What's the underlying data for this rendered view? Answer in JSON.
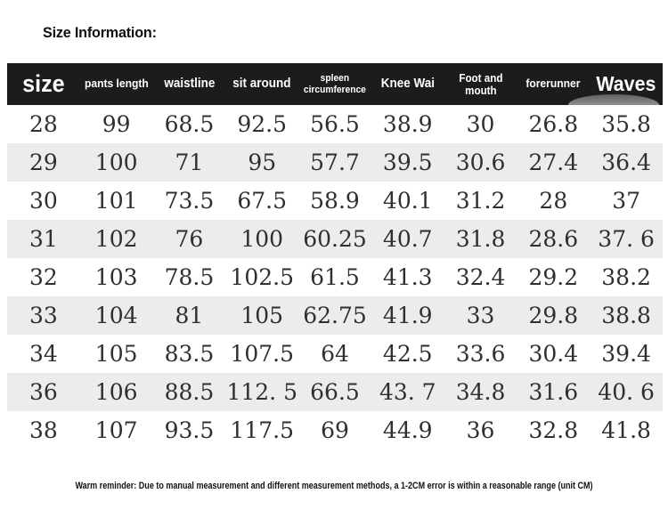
{
  "page": {
    "title": "Size Information:"
  },
  "table": {
    "columns": [
      {
        "label": "size",
        "emphasis": "xl"
      },
      {
        "label": "pants length",
        "emphasis": "sm"
      },
      {
        "label": "waistline",
        "emphasis": "md"
      },
      {
        "label": "sit around",
        "emphasis": "md"
      },
      {
        "label": "spleen\ncircumference",
        "emphasis": "xs"
      },
      {
        "label": "Knee Wai",
        "emphasis": "md"
      },
      {
        "label": "Foot and\nmouth",
        "emphasis": "xs2"
      },
      {
        "label": "forerunner",
        "emphasis": "sm"
      },
      {
        "label": "Waves",
        "emphasis": "lg"
      }
    ],
    "rows": [
      [
        "28",
        "99",
        "68.5",
        "92.5",
        "56.5",
        "38.9",
        "30",
        "26.8",
        "35.8"
      ],
      [
        "29",
        "100",
        "71",
        "95",
        "57.7",
        "39.5",
        "30.6",
        "27.4",
        "36.4"
      ],
      [
        "30",
        "101",
        "73.5",
        "67.5",
        "58.9",
        "40.1",
        "31.2",
        "28",
        "37"
      ],
      [
        "31",
        "102",
        "76",
        "100",
        "60.25",
        "40.7",
        "31.8",
        "28.6",
        "37. 6"
      ],
      [
        "32",
        "103",
        "78.5",
        "102.5",
        "61.5",
        "41.3",
        "32.4",
        "29.2",
        "38.2"
      ],
      [
        "33",
        "104",
        "81",
        "105",
        "62.75",
        "41.9",
        "33",
        "29.8",
        "38.8"
      ],
      [
        "34",
        "105",
        "83.5",
        "107.5",
        "64",
        "42.5",
        "33.6",
        "30.4",
        "39.4"
      ],
      [
        "36",
        "106",
        "88.5",
        "112. 5",
        "66.5",
        "43. 7",
        "34.8",
        "31.6",
        "40. 6"
      ],
      [
        "38",
        "107",
        "93.5",
        "117.5",
        "69",
        "44.9",
        "36",
        "32.8",
        "41.8"
      ]
    ],
    "unit_note": "Warm reminder: Due to manual measurement and different measurement methods, a 1-2CM error is within a reasonable range (unit CM)"
  },
  "colors": {
    "header_bg": "#1c1c1c",
    "header_text": "#ffffff",
    "row_alt_bg": "#ececec",
    "body_text": "#2f2f2f"
  }
}
